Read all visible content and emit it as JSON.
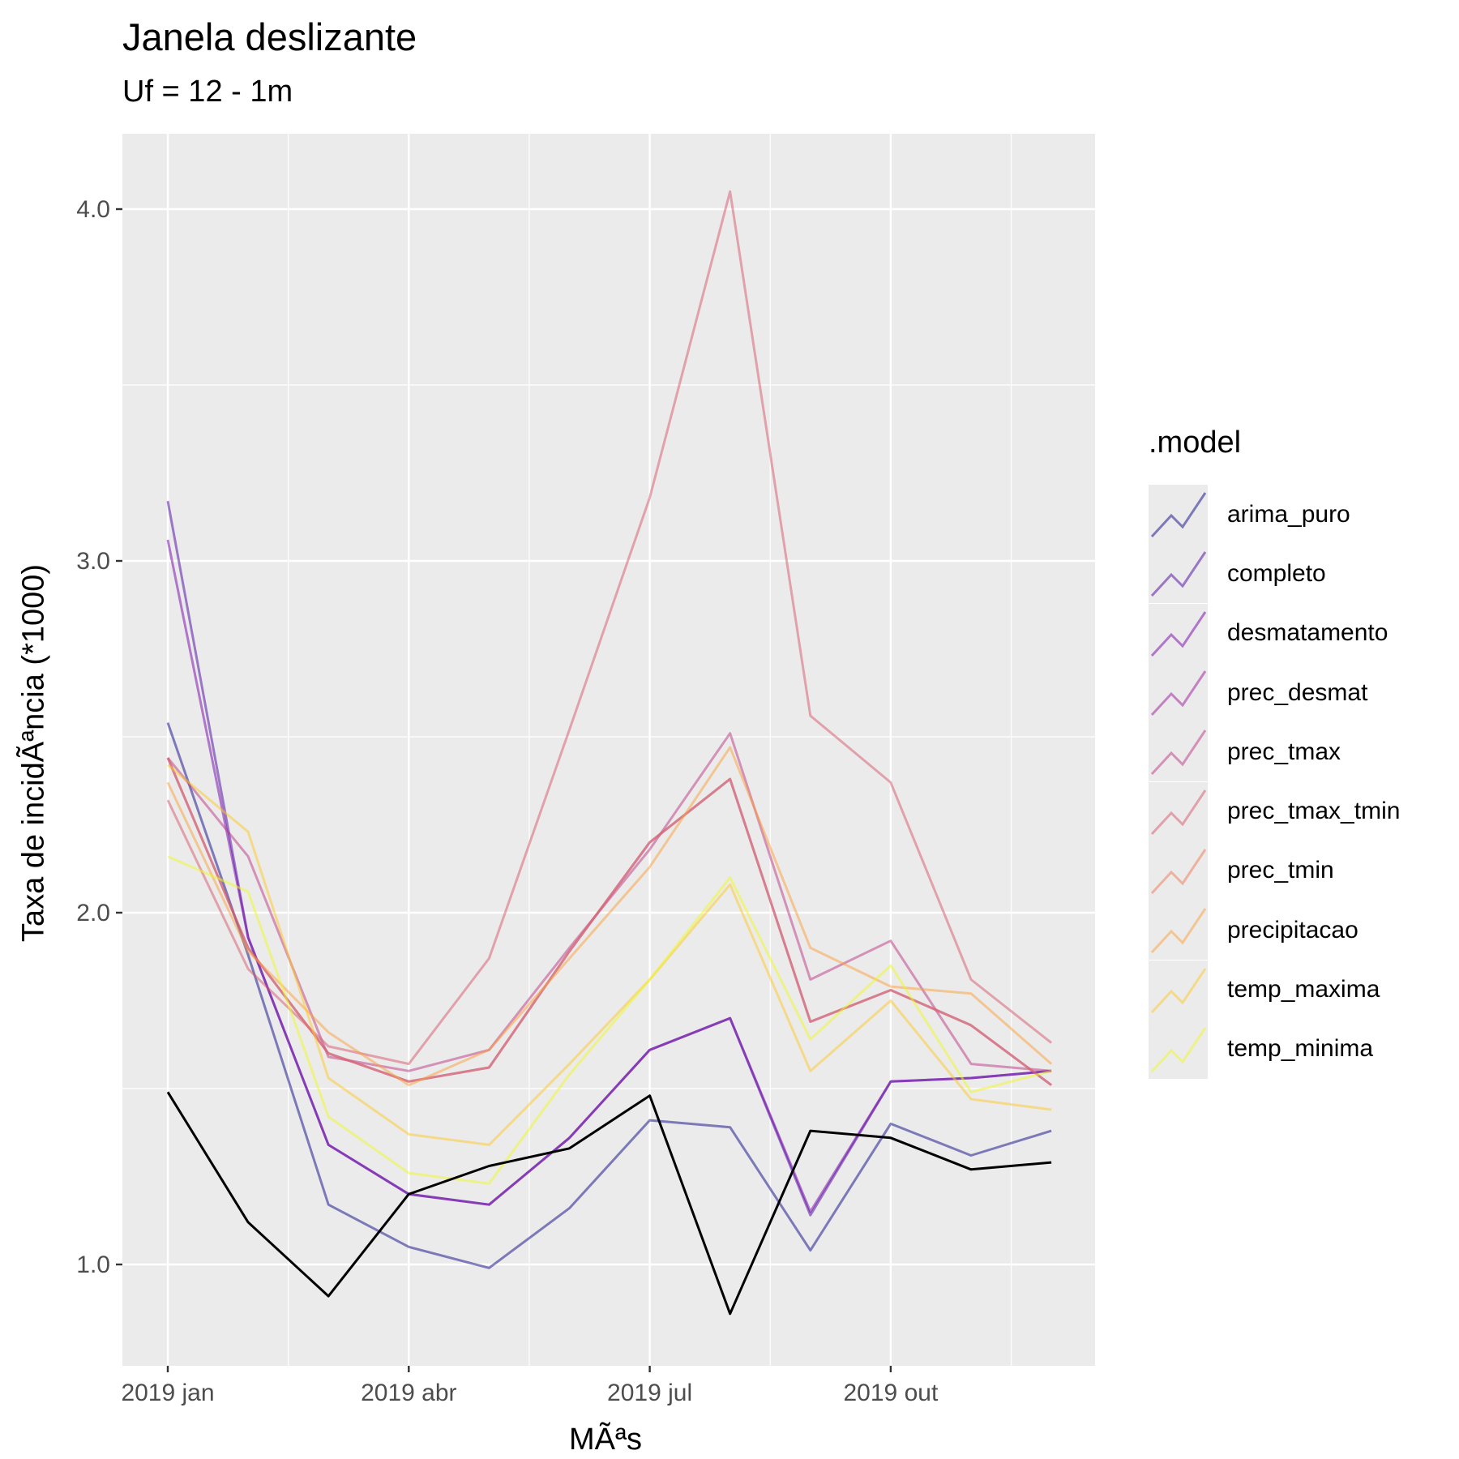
{
  "chart_data": {
    "type": "line",
    "title": "Janela deslizante",
    "subtitle": "Uf = 12 - 1m",
    "xlabel": "MÃªs",
    "ylabel": "Taxa de incidÃªncia (*1000)",
    "x": [
      "2019-01",
      "2019-02",
      "2019-03",
      "2019-04",
      "2019-05",
      "2019-06",
      "2019-07",
      "2019-08",
      "2019-09",
      "2019-10",
      "2019-11",
      "2019-12"
    ],
    "x_ticks": [
      "2019 jan",
      "2019 abr",
      "2019 jul",
      "2019 out"
    ],
    "y_ticks": [
      "1.0",
      "2.0",
      "3.0",
      "4.0"
    ],
    "ylim": [
      0.68,
      4.22
    ],
    "grid": true,
    "legend_title": ".model",
    "legend_position": "right",
    "observed": {
      "color": "#000000",
      "values": [
        1.49,
        1.12,
        0.91,
        1.2,
        1.28,
        1.33,
        1.48,
        0.86,
        1.38,
        1.36,
        1.27,
        1.29
      ]
    },
    "series": [
      {
        "name": "arima_puro",
        "color": "#0D0887",
        "values": [
          2.54,
          1.88,
          1.17,
          1.05,
          0.99,
          1.16,
          1.41,
          1.39,
          1.04,
          1.4,
          1.31,
          1.38
        ]
      },
      {
        "name": "completo",
        "color": "#47039F",
        "values": [
          3.17,
          1.93,
          1.34,
          1.2,
          1.17,
          1.36,
          1.61,
          1.7,
          1.14,
          1.52,
          1.53,
          1.55
        ]
      },
      {
        "name": "desmatamento",
        "color": "#7301A8",
        "values": [
          3.06,
          1.93,
          1.34,
          1.2,
          1.17,
          1.36,
          1.61,
          1.7,
          1.15,
          1.52,
          1.53,
          1.55
        ]
      },
      {
        "name": "prec_desmat",
        "color": "#9C179E",
        "values": [
          2.44,
          1.9,
          1.6,
          1.52,
          1.56,
          1.89,
          2.2,
          2.38,
          1.69,
          1.78,
          1.68,
          1.51
        ]
      },
      {
        "name": "prec_tmax",
        "color": "#BD3786",
        "values": [
          2.44,
          2.16,
          1.59,
          1.55,
          1.61,
          1.9,
          2.18,
          2.51,
          1.81,
          1.92,
          1.57,
          1.55
        ]
      },
      {
        "name": "prec_tmax_tmin",
        "color": "#D8576B",
        "values": [
          2.32,
          1.84,
          1.62,
          1.57,
          1.87,
          2.52,
          3.18,
          4.05,
          2.56,
          2.37,
          1.81,
          1.63
        ]
      },
      {
        "name": "prec_tmin",
        "color": "#ED7953",
        "values": [
          2.44,
          1.9,
          1.6,
          1.52,
          1.56,
          1.89,
          2.2,
          2.38,
          1.69,
          1.78,
          1.68,
          1.51
        ]
      },
      {
        "name": "precipitacao",
        "color": "#FB9F3A",
        "values": [
          2.37,
          1.89,
          1.66,
          1.51,
          1.61,
          1.87,
          2.13,
          2.47,
          1.9,
          1.79,
          1.77,
          1.57
        ]
      },
      {
        "name": "temp_maxima",
        "color": "#FDCA26",
        "values": [
          2.42,
          2.23,
          1.53,
          1.37,
          1.34,
          1.57,
          1.81,
          2.08,
          1.55,
          1.75,
          1.47,
          1.44
        ]
      },
      {
        "name": "temp_minima",
        "color": "#F0F921",
        "values": [
          2.16,
          2.06,
          1.42,
          1.26,
          1.23,
          1.54,
          1.81,
          2.1,
          1.64,
          1.85,
          1.49,
          1.55
        ]
      }
    ]
  }
}
